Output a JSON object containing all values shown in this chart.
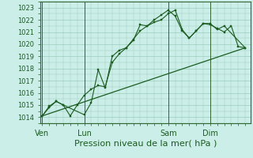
{
  "background_color": "#cceee8",
  "grid_color": "#99ccbb",
  "line_color": "#1a5c20",
  "spine_color": "#336633",
  "title": "Pression niveau de la mer( hPa )",
  "ylim": [
    1013.5,
    1023.5
  ],
  "yticks": [
    1014,
    1015,
    1016,
    1017,
    1018,
    1019,
    1020,
    1021,
    1022,
    1023
  ],
  "day_labels": [
    "Ven",
    "Lun",
    "Sam",
    "Dim"
  ],
  "day_positions": [
    0,
    48,
    144,
    192
  ],
  "xlim": [
    -2,
    238
  ],
  "line1_x": [
    0,
    8,
    16,
    24,
    32,
    40,
    48,
    56,
    64,
    72,
    80,
    88,
    96,
    104,
    112,
    120,
    128,
    136,
    144,
    152,
    160,
    168,
    176,
    184,
    192,
    200,
    208,
    216,
    224,
    232
  ],
  "line1_y": [
    1014.1,
    1014.9,
    1015.3,
    1015.0,
    1014.1,
    1015.0,
    1015.8,
    1016.3,
    1016.6,
    1016.5,
    1018.5,
    1019.2,
    1019.7,
    1020.4,
    1021.1,
    1021.5,
    1021.8,
    1022.0,
    1022.5,
    1022.8,
    1021.2,
    1020.5,
    1021.1,
    1021.7,
    1021.6,
    1021.3,
    1021.0,
    1021.5,
    1019.8,
    1019.7
  ],
  "line2_x": [
    0,
    8,
    16,
    24,
    48,
    56,
    64,
    72,
    80,
    88,
    96,
    104,
    112,
    120,
    128,
    136,
    144,
    152,
    160,
    168,
    176,
    184,
    192,
    200,
    208,
    232
  ],
  "line2_y": [
    1014.1,
    1014.8,
    1015.3,
    1015.0,
    1014.2,
    1015.2,
    1017.9,
    1016.4,
    1019.0,
    1019.5,
    1019.7,
    1020.3,
    1021.6,
    1021.5,
    1022.0,
    1022.4,
    1022.8,
    1022.3,
    1021.1,
    1020.5,
    1021.1,
    1021.7,
    1021.7,
    1021.2,
    1021.5,
    1019.7
  ],
  "line3_x": [
    0,
    232
  ],
  "line3_y": [
    1014.1,
    1019.7
  ],
  "ytick_fontsize": 6,
  "xtick_fontsize": 7,
  "xlabel_fontsize": 8
}
